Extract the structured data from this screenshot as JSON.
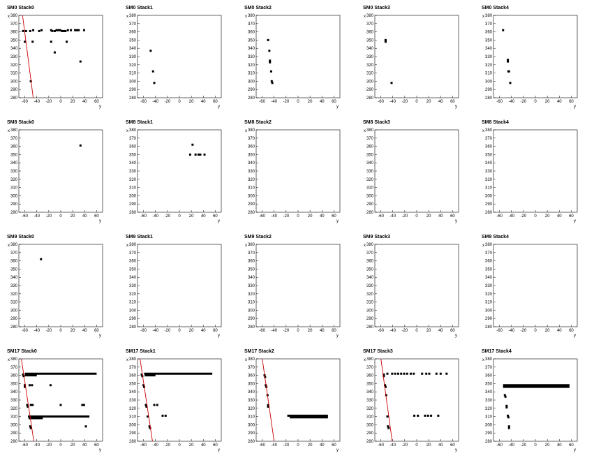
{
  "colors": {
    "marker": "#000000",
    "fit_line": "#cc0000",
    "frame": "#000000",
    "background": "#ffffff"
  },
  "chart_data": [
    {
      "type": "scatter",
      "title": "SM0 Stack0",
      "xlabel": "y",
      "ylabel": "x",
      "xlim": [
        -70,
        70
      ],
      "ylim": [
        280,
        380
      ],
      "xticks": [
        -60,
        -40,
        -20,
        0,
        20,
        40,
        60
      ],
      "yticks": [
        280,
        290,
        300,
        310,
        320,
        330,
        340,
        350,
        360,
        370,
        380
      ],
      "points": [
        [
          -63,
          361
        ],
        [
          -58,
          361
        ],
        [
          -60,
          348
        ],
        [
          -51,
          361
        ],
        [
          -46,
          362
        ],
        [
          -47,
          348
        ],
        [
          -36,
          361
        ],
        [
          -32,
          362
        ],
        [
          -16,
          362
        ],
        [
          -14,
          361
        ],
        [
          -10,
          361
        ],
        [
          -7,
          362
        ],
        [
          -4,
          362
        ],
        [
          -1,
          362
        ],
        [
          2,
          361
        ],
        [
          5,
          361
        ],
        [
          8,
          361
        ],
        [
          12,
          362
        ],
        [
          17,
          362
        ],
        [
          24,
          362
        ],
        [
          27,
          362
        ],
        [
          30,
          362
        ],
        [
          39,
          362
        ],
        [
          -16,
          348
        ],
        [
          -10,
          335
        ],
        [
          10,
          348
        ],
        [
          33,
          324
        ],
        [
          -50,
          300
        ]
      ],
      "fit_line": [
        [
          -64,
          381
        ],
        [
          -46,
          280
        ]
      ]
    },
    {
      "type": "scatter",
      "title": "SM0 Stack1",
      "xlabel": "y",
      "ylabel": "x",
      "xlim": [
        -70,
        70
      ],
      "ylim": [
        280,
        380
      ],
      "xticks": [
        -60,
        -40,
        -20,
        0,
        20,
        40,
        60
      ],
      "yticks": [
        280,
        290,
        300,
        310,
        320,
        330,
        340,
        350,
        360,
        370,
        380
      ],
      "points": [
        [
          -48,
          337
        ],
        [
          -44,
          312
        ],
        [
          -42,
          298
        ]
      ]
    },
    {
      "type": "scatter",
      "title": "SM0 Stack2",
      "xlabel": "y",
      "ylabel": "x",
      "xlim": [
        -70,
        70
      ],
      "ylim": [
        280,
        380
      ],
      "xticks": [
        -60,
        -40,
        -20,
        0,
        20,
        40,
        60
      ],
      "yticks": [
        280,
        290,
        300,
        310,
        320,
        330,
        340,
        350,
        360,
        370,
        380
      ],
      "points": [
        [
          -50,
          350
        ],
        [
          -48,
          337
        ],
        [
          -47,
          325
        ],
        [
          -47,
          323
        ],
        [
          -45,
          312
        ],
        [
          -44,
          300
        ],
        [
          -43,
          298
        ]
      ]
    },
    {
      "type": "scatter",
      "title": "SM0 Stack3",
      "xlabel": "y",
      "ylabel": "x",
      "xlim": [
        -70,
        70
      ],
      "ylim": [
        280,
        380
      ],
      "xticks": [
        -60,
        -40,
        -20,
        0,
        20,
        40,
        60
      ],
      "yticks": [
        280,
        290,
        300,
        310,
        320,
        330,
        340,
        350,
        360,
        370,
        380
      ],
      "points": [
        [
          -52,
          350
        ],
        [
          -52,
          348
        ],
        [
          -42,
          298
        ]
      ]
    },
    {
      "type": "scatter",
      "title": "SM0 Stack4",
      "xlabel": "y",
      "ylabel": "x",
      "xlim": [
        -70,
        70
      ],
      "ylim": [
        280,
        380
      ],
      "xticks": [
        -60,
        -40,
        -20,
        0,
        20,
        40,
        60
      ],
      "yticks": [
        280,
        290,
        300,
        310,
        320,
        330,
        340,
        350,
        360,
        370,
        380
      ],
      "points": [
        [
          -54,
          362
        ],
        [
          -46,
          326
        ],
        [
          -46,
          324
        ],
        [
          -45,
          312
        ],
        [
          -44,
          312
        ],
        [
          -42,
          298
        ]
      ]
    },
    {
      "type": "scatter",
      "title": "SM8 Stack0",
      "xlabel": "y",
      "ylabel": "x",
      "xlim": [
        -70,
        70
      ],
      "ylim": [
        280,
        380
      ],
      "xticks": [
        -60,
        -40,
        -20,
        0,
        20,
        40,
        60
      ],
      "yticks": [
        280,
        290,
        300,
        310,
        320,
        330,
        340,
        350,
        360,
        370,
        380
      ],
      "points": [
        [
          33,
          361
        ]
      ]
    },
    {
      "type": "scatter",
      "title": "SM8 Stack1",
      "xlabel": "y",
      "ylabel": "x",
      "xlim": [
        -70,
        70
      ],
      "ylim": [
        280,
        380
      ],
      "xticks": [
        -60,
        -40,
        -20,
        0,
        20,
        40,
        60
      ],
      "yticks": [
        280,
        290,
        300,
        310,
        320,
        330,
        340,
        350,
        360,
        370,
        380
      ],
      "points": [
        [
          22,
          362
        ],
        [
          18,
          350
        ],
        [
          27,
          350
        ],
        [
          32,
          350
        ],
        [
          35,
          350
        ],
        [
          42,
          350
        ]
      ]
    },
    {
      "type": "scatter",
      "title": "SM8 Stack2",
      "xlabel": "y",
      "ylabel": "x",
      "xlim": [
        -70,
        70
      ],
      "ylim": [
        280,
        380
      ],
      "xticks": [
        -60,
        -40,
        -20,
        0,
        20,
        40,
        60
      ],
      "yticks": [
        280,
        290,
        300,
        310,
        320,
        330,
        340,
        350,
        360,
        370,
        380
      ],
      "points": []
    },
    {
      "type": "scatter",
      "title": "SM8 Stack3",
      "xlabel": "y",
      "ylabel": "x",
      "xlim": [
        -70,
        70
      ],
      "ylim": [
        280,
        380
      ],
      "xticks": [
        -60,
        -40,
        -20,
        0,
        20,
        40,
        60
      ],
      "yticks": [
        280,
        290,
        300,
        310,
        320,
        330,
        340,
        350,
        360,
        370,
        380
      ],
      "points": []
    },
    {
      "type": "scatter",
      "title": "SM8 Stack4",
      "xlabel": "y",
      "ylabel": "x",
      "xlim": [
        -70,
        70
      ],
      "ylim": [
        280,
        380
      ],
      "xticks": [
        -60,
        -40,
        -20,
        0,
        20,
        40,
        60
      ],
      "yticks": [
        280,
        290,
        300,
        310,
        320,
        330,
        340,
        350,
        360,
        370,
        380
      ],
      "points": []
    },
    {
      "type": "scatter",
      "title": "SM9 Stack0",
      "xlabel": "y",
      "ylabel": "x",
      "xlim": [
        -70,
        70
      ],
      "ylim": [
        280,
        380
      ],
      "xticks": [
        -60,
        -40,
        -20,
        0,
        20,
        40,
        60
      ],
      "yticks": [
        280,
        290,
        300,
        310,
        320,
        330,
        340,
        350,
        360,
        370,
        380
      ],
      "points": [
        [
          -33,
          362
        ]
      ]
    },
    {
      "type": "scatter",
      "title": "SM9 Stack1",
      "xlabel": "y",
      "ylabel": "x",
      "xlim": [
        -70,
        70
      ],
      "ylim": [
        280,
        380
      ],
      "xticks": [
        -60,
        -40,
        -20,
        0,
        20,
        40,
        60
      ],
      "yticks": [
        280,
        290,
        300,
        310,
        320,
        330,
        340,
        350,
        360,
        370,
        380
      ],
      "points": []
    },
    {
      "type": "scatter",
      "title": "SM9 Stack2",
      "xlabel": "y",
      "ylabel": "x",
      "xlim": [
        -70,
        70
      ],
      "ylim": [
        280,
        380
      ],
      "xticks": [
        -60,
        -40,
        -20,
        0,
        20,
        40,
        60
      ],
      "yticks": [
        280,
        290,
        300,
        310,
        320,
        330,
        340,
        350,
        360,
        370,
        380
      ],
      "points": []
    },
    {
      "type": "scatter",
      "title": "SM9 Stack3",
      "xlabel": "y",
      "ylabel": "x",
      "xlim": [
        -70,
        70
      ],
      "ylim": [
        280,
        380
      ],
      "xticks": [
        -60,
        -40,
        -20,
        0,
        20,
        40,
        60
      ],
      "yticks": [
        280,
        290,
        300,
        310,
        320,
        330,
        340,
        350,
        360,
        370,
        380
      ],
      "points": []
    },
    {
      "type": "scatter",
      "title": "SM9 Stack4",
      "xlabel": "y",
      "ylabel": "x",
      "xlim": [
        -70,
        70
      ],
      "ylim": [
        280,
        380
      ],
      "xticks": [
        -60,
        -40,
        -20,
        0,
        20,
        40,
        60
      ],
      "yticks": [
        280,
        290,
        300,
        310,
        320,
        330,
        340,
        350,
        360,
        370,
        380
      ],
      "points": []
    },
    {
      "type": "scatter",
      "title": "SM17 Stack0",
      "xlabel": "y",
      "ylabel": "x",
      "xlim": [
        -70,
        70
      ],
      "ylim": [
        280,
        380
      ],
      "xticks": [
        -60,
        -40,
        -20,
        0,
        20,
        40,
        60
      ],
      "yticks": [
        280,
        290,
        300,
        310,
        320,
        330,
        340,
        350,
        360,
        370,
        380
      ],
      "points": [
        [
          -63,
          361
        ],
        [
          -62,
          359
        ],
        [
          -60,
          348
        ],
        [
          -60,
          346
        ],
        [
          -56,
          324
        ],
        [
          -55,
          322
        ],
        [
          -53,
          310
        ],
        [
          -52,
          308
        ],
        [
          -51,
          298
        ],
        [
          -50,
          296
        ],
        [
          -52,
          348
        ],
        [
          -48,
          348
        ],
        [
          -50,
          324
        ],
        [
          -47,
          324
        ],
        [
          -17,
          348
        ],
        [
          0,
          324
        ],
        [
          36,
          324
        ],
        [
          39,
          324
        ],
        [
          42,
          298
        ]
      ],
      "segments": [
        {
          "x": [
            -60,
            60
          ],
          "y": 362
        },
        {
          "x": [
            -60,
            -40
          ],
          "y": 360
        },
        {
          "x": [
            -52,
            48
          ],
          "y": 310
        },
        {
          "x": [
            -50,
            -30
          ],
          "y": 308
        }
      ],
      "fit_line": [
        [
          -66,
          381
        ],
        [
          -45,
          280
        ]
      ]
    },
    {
      "type": "scatter",
      "title": "SM17 Stack1",
      "xlabel": "y",
      "ylabel": "x",
      "xlim": [
        -70,
        70
      ],
      "ylim": [
        280,
        380
      ],
      "xticks": [
        -60,
        -40,
        -20,
        0,
        20,
        40,
        60
      ],
      "yticks": [
        280,
        290,
        300,
        310,
        320,
        330,
        340,
        350,
        360,
        370,
        380
      ],
      "points": [
        [
          -63,
          361
        ],
        [
          -62,
          359
        ],
        [
          -60,
          348
        ],
        [
          -59,
          346
        ],
        [
          -56,
          324
        ],
        [
          -55,
          322
        ],
        [
          -53,
          310
        ],
        [
          -50,
          298
        ],
        [
          -49,
          296
        ],
        [
          -42,
          324
        ],
        [
          -37,
          324
        ],
        [
          -28,
          311
        ],
        [
          -23,
          311
        ]
      ],
      "segments": [
        {
          "x": [
            -59,
            55
          ],
          "y": 362
        },
        {
          "x": [
            -58,
            -40
          ],
          "y": 360
        }
      ],
      "fit_line": [
        [
          -66,
          381
        ],
        [
          -45,
          280
        ]
      ]
    },
    {
      "type": "scatter",
      "title": "SM17 Stack2",
      "xlabel": "y",
      "ylabel": "x",
      "xlim": [
        -70,
        70
      ],
      "ylim": [
        280,
        380
      ],
      "xticks": [
        -60,
        -40,
        -20,
        0,
        20,
        40,
        60
      ],
      "yticks": [
        280,
        290,
        300,
        310,
        320,
        330,
        340,
        350,
        360,
        370,
        380
      ],
      "points": [
        [
          -56,
          360
        ],
        [
          -55,
          358
        ],
        [
          -54,
          348
        ],
        [
          -53,
          346
        ],
        [
          -51,
          336
        ],
        [
          -50,
          324
        ],
        [
          -50,
          322
        ]
      ],
      "segments": [
        {
          "x": [
            -18,
            50
          ],
          "y": 311
        },
        {
          "x": [
            -14,
            50
          ],
          "y": 309
        }
      ],
      "fit_line": [
        [
          -60,
          381
        ],
        [
          -40,
          280
        ]
      ]
    },
    {
      "type": "scatter",
      "title": "SM17 Stack3",
      "xlabel": "y",
      "ylabel": "x",
      "xlim": [
        -70,
        70
      ],
      "ylim": [
        280,
        380
      ],
      "xticks": [
        -60,
        -40,
        -20,
        0,
        20,
        40,
        60
      ],
      "yticks": [
        280,
        290,
        300,
        310,
        320,
        330,
        340,
        350,
        360,
        370,
        380
      ],
      "points": [
        [
          -55,
          361
        ],
        [
          -55,
          359
        ],
        [
          -53,
          348
        ],
        [
          -52,
          346
        ],
        [
          -51,
          336
        ],
        [
          -49,
          310
        ],
        [
          -48,
          298
        ],
        [
          -47,
          296
        ],
        [
          -49,
          362
        ],
        [
          -41,
          362
        ],
        [
          -36,
          362
        ],
        [
          -31,
          362
        ],
        [
          -26,
          362
        ],
        [
          -21,
          362
        ],
        [
          -16,
          362
        ],
        [
          -10,
          362
        ],
        [
          -5,
          362
        ],
        [
          9,
          362
        ],
        [
          16,
          362
        ],
        [
          21,
          362
        ],
        [
          33,
          362
        ],
        [
          40,
          362
        ],
        [
          50,
          362
        ],
        [
          -4,
          311
        ],
        [
          2,
          311
        ],
        [
          14,
          311
        ],
        [
          19,
          311
        ],
        [
          24,
          311
        ],
        [
          36,
          311
        ]
      ],
      "fit_line": [
        [
          -60,
          381
        ],
        [
          -41,
          280
        ]
      ]
    },
    {
      "type": "scatter",
      "title": "SM17 Stack4",
      "xlabel": "y",
      "ylabel": "x",
      "xlim": [
        -70,
        70
      ],
      "ylim": [
        280,
        380
      ],
      "xticks": [
        -60,
        -40,
        -20,
        0,
        20,
        40,
        60
      ],
      "yticks": [
        280,
        290,
        300,
        310,
        320,
        330,
        340,
        350,
        360,
        370,
        380
      ],
      "points": [
        [
          -51,
          336
        ],
        [
          -50,
          334
        ],
        [
          -48,
          323
        ],
        [
          -48,
          321
        ],
        [
          -46,
          311
        ],
        [
          -45,
          309
        ],
        [
          -44,
          298
        ],
        [
          -44,
          296
        ]
      ],
      "segments": [
        {
          "x": [
            -54,
            57
          ],
          "y": 348
        },
        {
          "x": [
            -54,
            57
          ],
          "y": 346
        }
      ]
    }
  ]
}
